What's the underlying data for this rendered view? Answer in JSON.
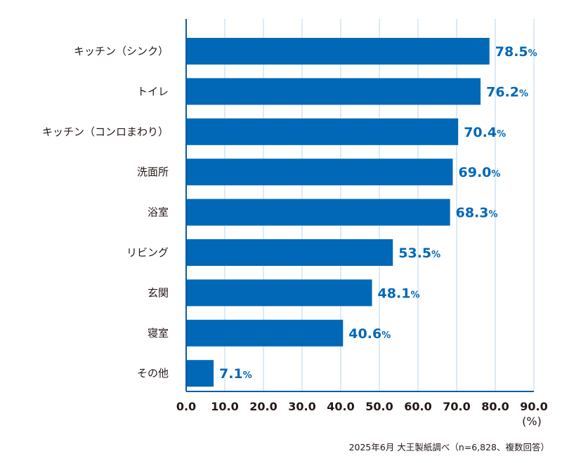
{
  "chart_data": {
    "type": "bar",
    "orientation": "horizontal",
    "categories": [
      "キッチン（シンク）",
      "トイレ",
      "キッチン（コンロまわり）",
      "洗面所",
      "浴室",
      "リビング",
      "玄関",
      "寝室",
      "その他"
    ],
    "values": [
      78.5,
      76.2,
      70.4,
      69.0,
      68.3,
      53.5,
      48.1,
      40.6,
      7.1
    ],
    "value_suffix": "%",
    "xlim": [
      0,
      90
    ],
    "xticks": [
      "0.0",
      "10.0",
      "20.0",
      "30.0",
      "40.0",
      "50.0",
      "60.0",
      "70.0",
      "80.0",
      "90.0"
    ],
    "xunit": "(%)",
    "grid": true,
    "colors": {
      "bar": "#0068b7",
      "grid": "#b9d5ec",
      "axis": "#0a5ca8",
      "label": "#0068b7"
    }
  },
  "footnote": "2025年6月 大王製紙調べ（n=6,828、複数回答）"
}
